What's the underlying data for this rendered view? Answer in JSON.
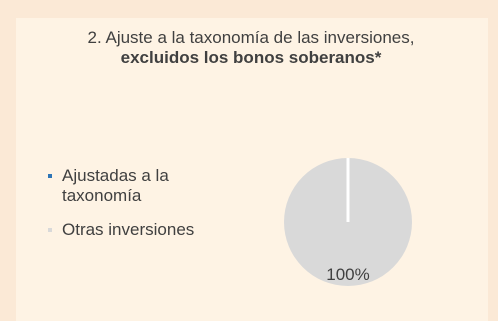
{
  "chart_data": {
    "type": "pie",
    "title_prefix": "2. Ajuste a la taxonomía de las inversiones, ",
    "title_bold": "excluidos los bonos soberanos*",
    "slices": [
      {
        "label": "Ajustadas a la taxonomía",
        "value": 0,
        "color": "#2e75b6"
      },
      {
        "label": "Otras inversiones",
        "value": 100,
        "color": "#d9d9d9"
      }
    ],
    "data_labels": [
      "",
      "100%"
    ],
    "legend_position": "left"
  },
  "colors": {
    "background": "#fbe9d6",
    "card": "#fef3e4",
    "text": "#404040"
  }
}
